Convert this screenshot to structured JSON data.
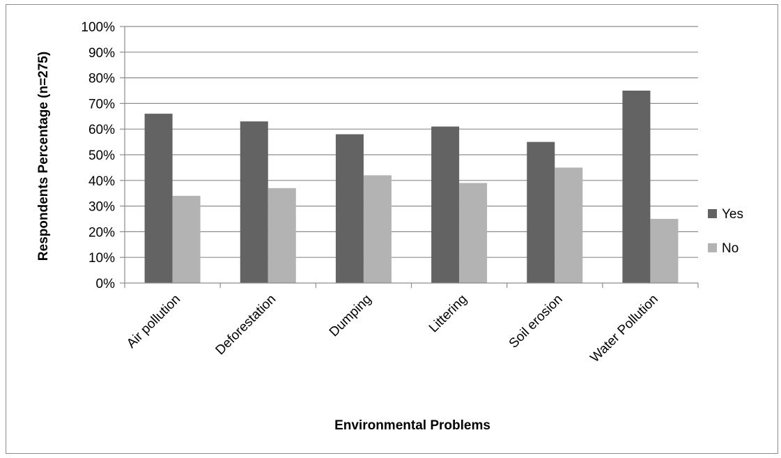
{
  "chart_data": {
    "type": "bar",
    "title": "",
    "xlabel": "Environmental Problems",
    "ylabel": "Respondents Percentage (n=275)",
    "ylim": [
      0,
      100
    ],
    "y_ticks": [
      "0%",
      "10%",
      "20%",
      "30%",
      "40%",
      "50%",
      "60%",
      "70%",
      "80%",
      "90%",
      "100%"
    ],
    "categories": [
      "Air pollution",
      "Deforestation",
      "Dumping",
      "Littering",
      "Soil erosion",
      "Water Pollution"
    ],
    "series": [
      {
        "name": "Yes",
        "values": [
          66,
          63,
          58,
          61,
          55,
          75
        ],
        "color": "#636363"
      },
      {
        "name": "No",
        "values": [
          34,
          37,
          42,
          39,
          45,
          25
        ],
        "color": "#b3b3b3"
      }
    ],
    "grid": true,
    "legend_position": "right"
  }
}
